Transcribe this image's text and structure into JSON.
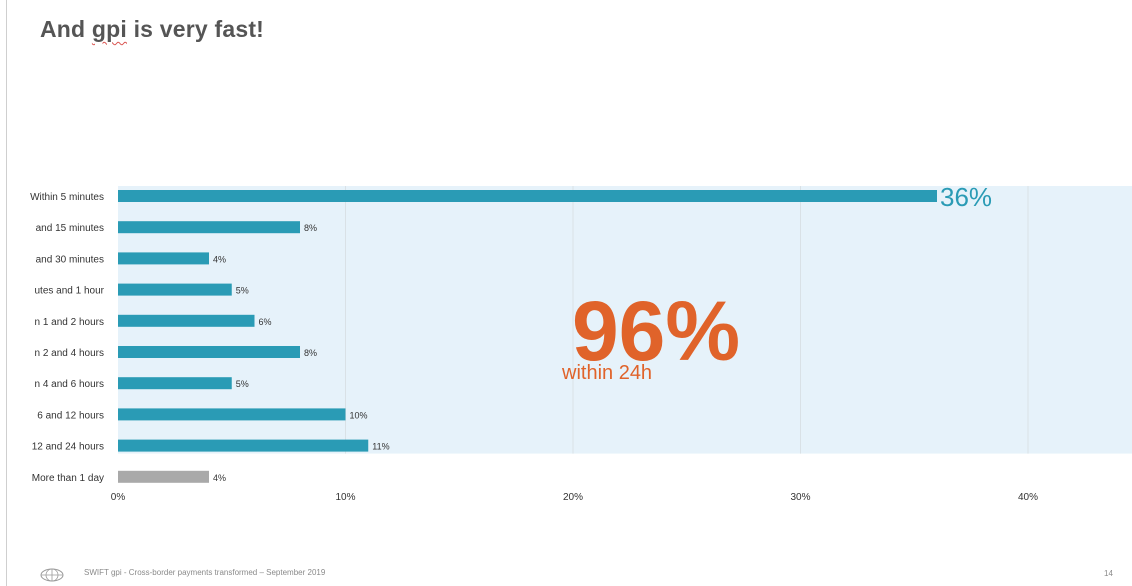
{
  "slide": {
    "title_prefix": "And ",
    "title_gpi": "gpi",
    "title_suffix": " is very fast!",
    "footer_text": "SWIFT gpi - Cross-border payments transformed – September 2019",
    "page_number": "14"
  },
  "callout": {
    "big_value": "96%",
    "caption": "within 24h",
    "color": "#e0632a"
  },
  "colors": {
    "bar_primary": "#2a9bb5",
    "bar_secondary": "#a9a9a9",
    "highlight_band": "#e6f2fa",
    "gridline": "#d9e1e6",
    "label_text": "#333333",
    "highlight_label": "#2a9bb5"
  },
  "chart_data": {
    "type": "bar",
    "orientation": "horizontal",
    "categories": [
      "Within 5 minutes",
      "and 15 minutes",
      "and 30 minutes",
      "utes and 1 hour",
      "n 1 and 2 hours",
      "n 2 and 4 hours",
      "n 4 and 6 hours",
      "6 and 12 hours",
      "12 and 24 hours",
      "More than 1 day"
    ],
    "values": [
      36,
      8,
      4,
      5,
      6,
      8,
      5,
      10,
      11,
      4
    ],
    "value_labels": [
      "36%",
      "8%",
      "4%",
      "5%",
      "6%",
      "8%",
      "5%",
      "10%",
      "11%",
      "4%"
    ],
    "xlim": [
      0,
      44
    ],
    "xticks": [
      0,
      10,
      20,
      30,
      40
    ],
    "xtick_labels": [
      "0%",
      "10%",
      "20%",
      "30%",
      "40%"
    ],
    "grid": true,
    "highlighted_categories": 9
  }
}
